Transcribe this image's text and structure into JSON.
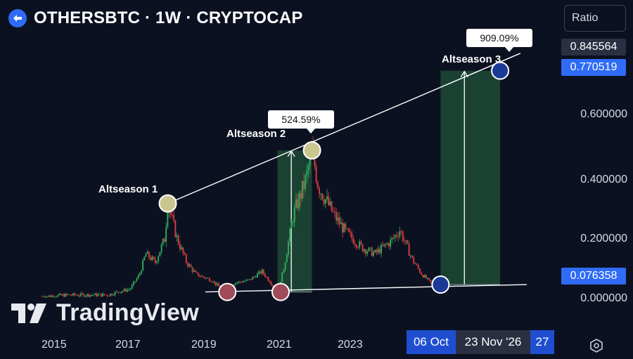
{
  "header": {
    "title": "OTHERSBTC · 1W · CRYPTOCAP"
  },
  "controls": {
    "ratio_label": "Ratio"
  },
  "price_boxes": {
    "top": "0.845564",
    "current": "0.770519",
    "bottom": "0.076358"
  },
  "watermark": "TradingView",
  "x_axis_boxes": {
    "left": "06 Oct",
    "middle": "23 Nov '26",
    "right": "27"
  },
  "colors": {
    "background": "#0c1121",
    "blue": "#2f6bf6",
    "green_zone": "#1d4a35",
    "candle_up": "#2fb35e",
    "candle_down": "#e0403f"
  },
  "chart_data": {
    "type": "candlestick",
    "title": "OTHERSBTC · 1W · CRYPTOCAP",
    "y_ticks": [
      "0.600000",
      "0.400000",
      "0.200000",
      "0.000000"
    ],
    "x_ticks": [
      "2015",
      "2017",
      "2019",
      "2021",
      "2023"
    ],
    "ylim": [
      0,
      0.87
    ],
    "price_path": [
      [
        "2014-09",
        0.005
      ],
      [
        "2015-06",
        0.01
      ],
      [
        "2016-06",
        0.01
      ],
      [
        "2016-09",
        0.02
      ],
      [
        "2017-01",
        0.03
      ],
      [
        "2017-04",
        0.08
      ],
      [
        "2017-06",
        0.15
      ],
      [
        "2017-09",
        0.12
      ],
      [
        "2017-12",
        0.2
      ],
      [
        "2018-01",
        0.32
      ],
      [
        "2018-04",
        0.2
      ],
      [
        "2018-07",
        0.12
      ],
      [
        "2018-10",
        0.08
      ],
      [
        "2019-03",
        0.06
      ],
      [
        "2019-07",
        0.02
      ],
      [
        "2019-10",
        0.05
      ],
      [
        "2020-03",
        0.06
      ],
      [
        "2020-07",
        0.09
      ],
      [
        "2020-10",
        0.05
      ],
      [
        "2020-12",
        0.02
      ],
      [
        "2021-02",
        0.1
      ],
      [
        "2021-05",
        0.28
      ],
      [
        "2021-09",
        0.4
      ],
      [
        "2021-11",
        0.5
      ],
      [
        "2022-01",
        0.38
      ],
      [
        "2022-06",
        0.28
      ],
      [
        "2022-10",
        0.22
      ],
      [
        "2023-03",
        0.17
      ],
      [
        "2023-07",
        0.15
      ],
      [
        "2023-12",
        0.19
      ],
      [
        "2024-03",
        0.23
      ],
      [
        "2024-07",
        0.13
      ],
      [
        "2024-10",
        0.08
      ],
      [
        "2025-01",
        0.05
      ],
      [
        "2025-04",
        0.045
      ],
      [
        "2025-06",
        0.06
      ]
    ],
    "trendlines": {
      "upper": {
        "from": [
          "2018-01",
          0.32
        ],
        "to": [
          "2027-01",
          0.81
        ]
      },
      "lower": {
        "from": [
          "2019-01",
          0.02
        ],
        "to": [
          "2027-03",
          0.045
        ]
      }
    },
    "markers": [
      {
        "date": "2018-01",
        "value": 0.32,
        "fill": "#c9c78e"
      },
      {
        "date": "2021-11",
        "value": 0.5,
        "fill": "#c9c78e"
      },
      {
        "date": "2026-11",
        "value": 0.77,
        "fill": "#1b3a96"
      },
      {
        "date": "2019-08",
        "value": 0.02,
        "fill": "#a04a5a"
      },
      {
        "date": "2021-01",
        "value": 0.02,
        "fill": "#a04a5a"
      },
      {
        "date": "2025-04",
        "value": 0.045,
        "fill": "#1b3a96"
      }
    ],
    "zones": [
      {
        "from": "2020-12",
        "to": "2021-11",
        "low": 0.02,
        "high": 0.5,
        "label": "524.59%"
      },
      {
        "from": "2025-04",
        "to": "2026-11",
        "low": 0.045,
        "high": 0.77,
        "label": "909.09%"
      }
    ],
    "annotations": [
      "Altseason 1",
      "Altseason 2",
      "Altseason 3"
    ]
  }
}
